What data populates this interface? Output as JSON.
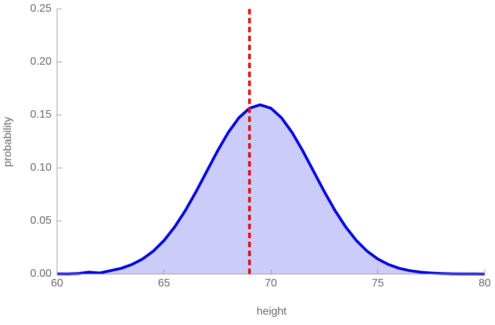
{
  "chart_data": {
    "type": "area",
    "x_label": "height",
    "y_label": "probability",
    "x": [
      60,
      60.5,
      61,
      61.5,
      62,
      62.5,
      63,
      63.5,
      64,
      64.5,
      65,
      65.5,
      66,
      66.5,
      67,
      67.5,
      68,
      68.5,
      69,
      69.5,
      70,
      70.5,
      71,
      71.5,
      72,
      72.5,
      73,
      73.5,
      74,
      74.5,
      75,
      75.5,
      76,
      76.5,
      77,
      77.5,
      78,
      78.5,
      79,
      79.5,
      80
    ],
    "values": [
      0.0002,
      0.0001,
      0.0005,
      0.0018,
      0.001,
      0.0032,
      0.0054,
      0.009,
      0.0142,
      0.0216,
      0.0316,
      0.0444,
      0.0599,
      0.0777,
      0.0968,
      0.1159,
      0.1333,
      0.1473,
      0.1564,
      0.1596,
      0.1564,
      0.1473,
      0.1333,
      0.1159,
      0.0968,
      0.0777,
      0.0599,
      0.0444,
      0.0316,
      0.0216,
      0.0142,
      0.009,
      0.0054,
      0.0032,
      0.0018,
      0.001,
      0.0005,
      0.0002,
      0.0001,
      0.0001,
      0.0
    ],
    "color": "#0000dd",
    "fill": "#ccccf9",
    "vline": {
      "x": 69,
      "color": "#e01010"
    },
    "xlim": [
      60,
      80
    ],
    "ylim": [
      0,
      0.25
    ],
    "xticks": [
      60,
      65,
      70,
      75,
      80
    ],
    "yticks": [
      {
        "value": 0,
        "label": "0.00"
      },
      0.05,
      {
        "value": 0.1,
        "label": "0.10"
      },
      0.15,
      {
        "value": 0.2,
        "label": "0.20"
      },
      0.25
    ]
  }
}
